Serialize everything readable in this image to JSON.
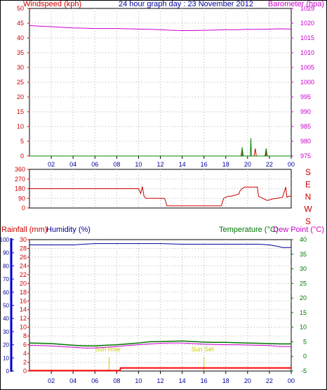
{
  "chart_data": [
    {
      "type": "line",
      "title": "24 hour graph day : 23 November 2012",
      "left_axis_label": "Windspeed (kph)",
      "right_axis_label": "Barometer (hpa)",
      "x_ticks": [
        "02",
        "04",
        "06",
        "08",
        "10",
        "12",
        "14",
        "16",
        "18",
        "20",
        "22",
        "00"
      ],
      "left_ticks": [
        "0",
        "5",
        "10",
        "15",
        "20",
        "25",
        "30",
        "35",
        "40",
        "45",
        "50"
      ],
      "left_range": [
        0,
        50
      ],
      "right_ticks": [
        "975",
        "980",
        "985",
        "990",
        "995",
        "1000",
        "1005",
        "1010",
        "1015",
        "1020",
        "1025"
      ],
      "right_range": [
        975,
        1025
      ],
      "grid": true,
      "series": [
        {
          "key": "barometer",
          "axis": "right",
          "color": "#cc00cc",
          "x": [
            0,
            1,
            2,
            3,
            4,
            5,
            6,
            7,
            8,
            9,
            10,
            11,
            12,
            13,
            14,
            15,
            16,
            17,
            18,
            19,
            20,
            21,
            22,
            23,
            24
          ],
          "values": [
            1019.2,
            1019.0,
            1018.8,
            1018.6,
            1018.4,
            1018.3,
            1018.2,
            1018.2,
            1018.2,
            1018.1,
            1018.0,
            1017.9,
            1017.8,
            1017.6,
            1017.5,
            1017.5,
            1017.6,
            1017.7,
            1017.8,
            1017.8,
            1017.9,
            1017.9,
            1018.0,
            1018.1,
            1018.0
          ]
        },
        {
          "key": "windspeed",
          "axis": "left",
          "color": "#cc0000",
          "x": [
            0,
            19.4,
            19.5,
            19.6,
            20.6,
            20.7,
            20.8,
            21.6,
            21.7,
            21.8,
            24
          ],
          "values": [
            0,
            0,
            2.5,
            0,
            0,
            2.5,
            0,
            0,
            2.5,
            0,
            0
          ]
        },
        {
          "key": "gust",
          "axis": "left",
          "color": "#008800",
          "x": [
            0,
            19.45,
            19.5,
            19.55,
            20.25,
            20.3,
            20.35,
            21.65,
            21.7,
            21.75,
            24
          ],
          "values": [
            0,
            0,
            3.0,
            0,
            0,
            6.0,
            0,
            0,
            2.5,
            0,
            0
          ]
        }
      ]
    },
    {
      "type": "line",
      "left_ticks": [
        "0",
        "90",
        "180",
        "270",
        "360"
      ],
      "left_range": [
        0,
        360
      ],
      "right_labels": [
        "S",
        "E",
        "N",
        "W",
        "S"
      ],
      "grid": true,
      "series": [
        {
          "key": "winddir",
          "axis": "left",
          "color": "#cc0000",
          "x": [
            0,
            10.0,
            10.2,
            10.35,
            10.5,
            10.7,
            12.4,
            12.6,
            17.6,
            17.8,
            18.2,
            18.5,
            19.2,
            19.3,
            19.5,
            19.7,
            20.9,
            21.0,
            21.4,
            21.8,
            22.3,
            22.7,
            23.2,
            23.5,
            23.6,
            23.8,
            24
          ],
          "values": [
            180,
            180,
            135,
            200,
            110,
            90,
            90,
            20,
            20,
            90,
            110,
            110,
            130,
            160,
            180,
            195,
            195,
            110,
            90,
            70,
            85,
            90,
            100,
            195,
            100,
            110,
            110
          ]
        }
      ]
    },
    {
      "type": "line",
      "labels": {
        "rainfall": "Rainfall (mm)",
        "humidity": "Humidity (%)",
        "temperature": "Temperature (°C)",
        "dew_point": "Dew Point (°C)",
        "sun_rise": "Sun Rise",
        "sun_set": "Sun Set"
      },
      "x_ticks": [
        "02",
        "04",
        "06",
        "08",
        "10",
        "12",
        "14",
        "16",
        "18",
        "20",
        "22",
        "00"
      ],
      "humidity_ticks": [
        "0",
        "10",
        "20",
        "30",
        "40",
        "50",
        "60",
        "70",
        "80",
        "90",
        "100"
      ],
      "rain_ticks": [
        "0",
        "2",
        "4",
        "6",
        "8",
        "10",
        "12",
        "14",
        "16",
        "18",
        "20",
        "22",
        "24",
        "26",
        "28",
        "30"
      ],
      "temp_ticks": [
        "-5",
        "0",
        "5",
        "10",
        "15",
        "20",
        "25",
        "30",
        "35",
        "40"
      ],
      "humidity_range": [
        0,
        100
      ],
      "rain_range": [
        0,
        30
      ],
      "temp_range": [
        -5,
        40
      ],
      "sun_rise_hour": 7.3,
      "sun_set_hour": 16.0,
      "grid": true,
      "series": [
        {
          "key": "humidity",
          "axis": "humidity",
          "color": "#000099",
          "x": [
            0,
            2,
            4,
            6,
            8,
            10,
            12,
            14,
            16,
            18,
            20,
            21,
            22,
            22.7,
            23.2,
            24
          ],
          "values": [
            96,
            96,
            96,
            97,
            97,
            97,
            97,
            96.5,
            96.5,
            96.5,
            96.5,
            96.5,
            96,
            95,
            94,
            94
          ]
        },
        {
          "key": "temperature",
          "axis": "temp",
          "color": "#007700",
          "x": [
            0,
            2,
            4,
            5,
            6,
            7,
            8,
            9,
            10,
            11,
            12,
            13,
            14,
            15,
            16,
            17,
            18,
            19,
            20,
            21,
            22,
            23,
            24
          ],
          "values": [
            4.6,
            4.4,
            3.8,
            3.6,
            3.6,
            3.8,
            4.0,
            4.3,
            4.6,
            5.0,
            5.1,
            5.2,
            5.3,
            5.1,
            4.9,
            4.8,
            4.8,
            4.7,
            4.6,
            4.5,
            4.4,
            4.3,
            4.3
          ]
        },
        {
          "key": "dew_point",
          "axis": "temp",
          "color": "#cc00cc",
          "x": [
            0,
            2,
            4,
            5,
            6,
            7,
            8,
            9,
            10,
            11,
            12,
            13,
            14,
            15,
            16,
            17,
            18,
            19,
            20,
            21,
            22,
            23,
            24
          ],
          "values": [
            3.8,
            3.6,
            3.1,
            2.9,
            2.9,
            3.1,
            3.4,
            3.7,
            4.0,
            4.3,
            4.5,
            4.6,
            4.6,
            4.4,
            4.2,
            4.1,
            4.0,
            4.0,
            3.9,
            3.8,
            3.7,
            3.4,
            3.4
          ]
        },
        {
          "key": "rainfall",
          "axis": "rain",
          "color": "#ff0000",
          "x": [
            0,
            8.3,
            8.35,
            24
          ],
          "values": [
            0.1,
            0.1,
            0.7,
            0.7
          ]
        }
      ]
    }
  ]
}
